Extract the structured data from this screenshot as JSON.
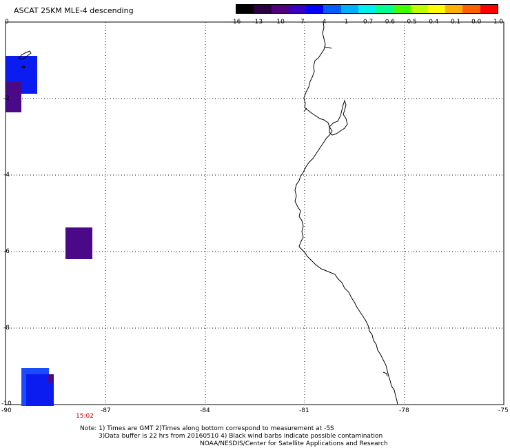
{
  "title": "ASCAT 25KM MLE-4 descending",
  "colorbar": {
    "labels": [
      "-16",
      "-13",
      "-10",
      "-7",
      "-4",
      "-1",
      "-0.7",
      "-0.6",
      "-0.5",
      "-0.4",
      "-0.1",
      "0.0",
      "1.0"
    ],
    "colors": [
      "#000000",
      "#2a0040",
      "#50007a",
      "#3a00c0",
      "#0000ff",
      "#0060ff",
      "#00b0ff",
      "#00f0f0",
      "#00ff90",
      "#40ff00",
      "#c0ff00",
      "#ffff00",
      "#ffb000",
      "#ff6000",
      "#ff0000"
    ]
  },
  "axes": {
    "y_labels": [
      "0",
      "-2",
      "-4",
      "-6",
      "-8",
      "-10"
    ],
    "x_labels": [
      "-90",
      "-87",
      "-84",
      "-81",
      "-78",
      "-75"
    ]
  },
  "time_label": "15:02",
  "notes": {
    "line1": "Note: 1) Times are GMT 2)Times along bottom correspond to measurement at -5S",
    "line2": "3)Data buffer is 22 hrs from 20160510 4) Black wind barbs indicate possible contamination",
    "line3": "NOAA/NESDIS/Center for Satellite Applications and Research"
  },
  "data_colors": {
    "blue": "#0a1cf0",
    "purple": "#4a0a88",
    "blue_light": "#1a3cff",
    "accent_red": "#d00000"
  }
}
